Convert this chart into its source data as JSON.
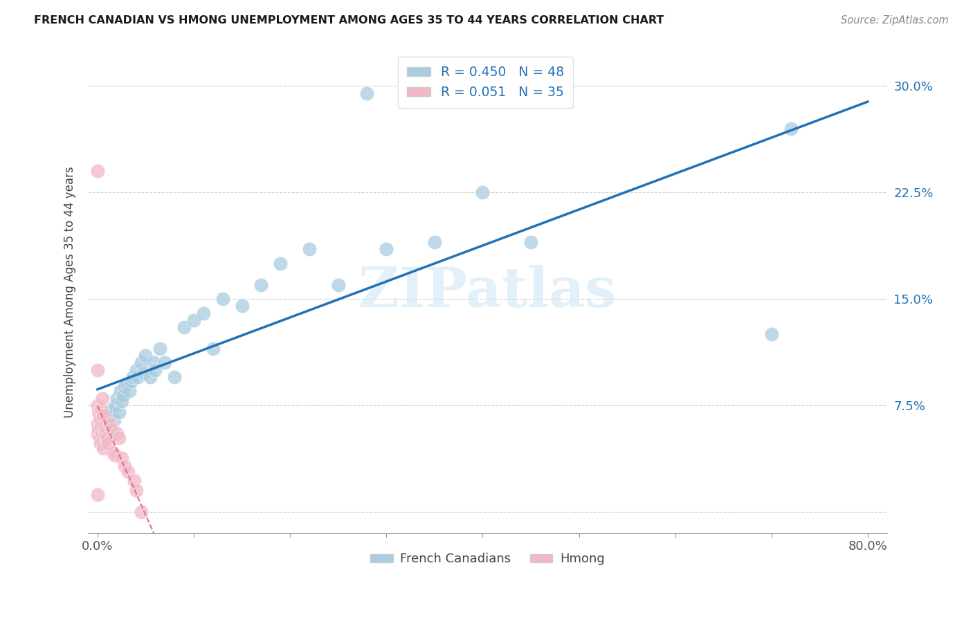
{
  "title": "FRENCH CANADIAN VS HMONG UNEMPLOYMENT AMONG AGES 35 TO 44 YEARS CORRELATION CHART",
  "source": "Source: ZipAtlas.com",
  "ylabel": "Unemployment Among Ages 35 to 44 years",
  "xlim": [
    -0.01,
    0.82
  ],
  "ylim": [
    -0.015,
    0.325
  ],
  "xtick_positions": [
    0.0,
    0.1,
    0.2,
    0.3,
    0.4,
    0.5,
    0.6,
    0.7,
    0.8
  ],
  "xtick_labels": [
    "0.0%",
    "",
    "",
    "",
    "",
    "",
    "",
    "",
    "80.0%"
  ],
  "ytick_positions": [
    0.0,
    0.075,
    0.15,
    0.225,
    0.3
  ],
  "ytick_labels": [
    "",
    "7.5%",
    "15.0%",
    "22.5%",
    "30.0%"
  ],
  "r_french": 0.45,
  "n_french": 48,
  "r_hmong": 0.051,
  "n_hmong": 35,
  "blue_scatter": "#a8cce0",
  "pink_scatter": "#f2b8c6",
  "blue_line": "#2171b5",
  "pink_line": "#e07090",
  "watermark": "ZIPatlas",
  "watermark_color": "#d0e8f5",
  "fr_x": [
    0.003,
    0.005,
    0.007,
    0.008,
    0.01,
    0.012,
    0.013,
    0.015,
    0.017,
    0.019,
    0.02,
    0.022,
    0.024,
    0.025,
    0.027,
    0.028,
    0.03,
    0.033,
    0.035,
    0.037,
    0.04,
    0.042,
    0.045,
    0.048,
    0.05,
    0.055,
    0.058,
    0.06,
    0.065,
    0.07,
    0.08,
    0.09,
    0.1,
    0.11,
    0.12,
    0.13,
    0.15,
    0.17,
    0.19,
    0.22,
    0.25,
    0.28,
    0.3,
    0.35,
    0.4,
    0.45,
    0.7,
    0.72
  ],
  "fr_y": [
    0.06,
    0.055,
    0.065,
    0.058,
    0.062,
    0.068,
    0.07,
    0.072,
    0.065,
    0.075,
    0.08,
    0.07,
    0.085,
    0.078,
    0.082,
    0.088,
    0.09,
    0.085,
    0.092,
    0.095,
    0.1,
    0.095,
    0.105,
    0.098,
    0.11,
    0.095,
    0.105,
    0.1,
    0.115,
    0.105,
    0.095,
    0.13,
    0.135,
    0.14,
    0.115,
    0.15,
    0.145,
    0.16,
    0.175,
    0.185,
    0.16,
    0.295,
    0.185,
    0.19,
    0.225,
    0.19,
    0.125,
    0.27
  ],
  "hm_x": [
    0.0,
    0.0,
    0.0,
    0.0,
    0.0,
    0.0,
    0.001,
    0.001,
    0.002,
    0.002,
    0.003,
    0.003,
    0.004,
    0.004,
    0.005,
    0.005,
    0.006,
    0.006,
    0.007,
    0.008,
    0.009,
    0.01,
    0.011,
    0.013,
    0.015,
    0.016,
    0.018,
    0.02,
    0.022,
    0.025,
    0.028,
    0.032,
    0.038,
    0.04,
    0.045
  ],
  "hm_y": [
    0.24,
    0.1,
    0.075,
    0.062,
    0.055,
    0.012,
    0.07,
    0.058,
    0.068,
    0.052,
    0.065,
    0.048,
    0.072,
    0.06,
    0.08,
    0.055,
    0.068,
    0.045,
    0.06,
    0.055,
    0.058,
    0.052,
    0.048,
    0.062,
    0.058,
    0.042,
    0.04,
    0.055,
    0.052,
    0.038,
    0.032,
    0.028,
    0.022,
    0.015,
    0.0
  ]
}
